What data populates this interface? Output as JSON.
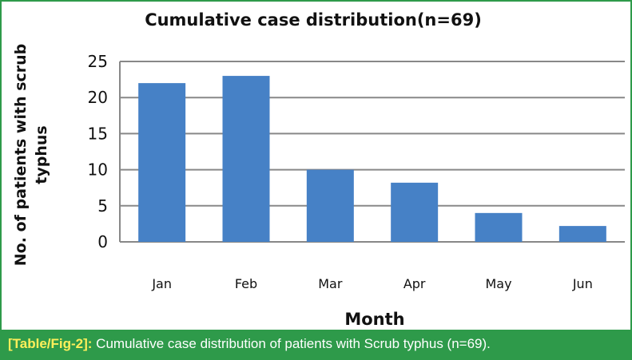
{
  "chart_data": {
    "type": "bar",
    "title": "Cumulative case distribution(n=69)",
    "xlabel": "Month",
    "ylabel_lines": [
      "No. of patients with scrub",
      "typhus"
    ],
    "categories": [
      "Jan",
      "Feb",
      "Mar",
      "Apr",
      "May",
      "Jun"
    ],
    "values": [
      22,
      23,
      10,
      8.2,
      4,
      2.2
    ],
    "ylim": [
      0,
      25
    ],
    "yticks": [
      "0",
      "5",
      "10",
      "15",
      "20",
      "25"
    ],
    "grid": true,
    "legend": "none",
    "bar_color": "#4681c6"
  },
  "caption": {
    "label": "[Table/Fig-2]:",
    "text": " Cumulative case distribution of patients with Scrub typhus (n=69)."
  }
}
